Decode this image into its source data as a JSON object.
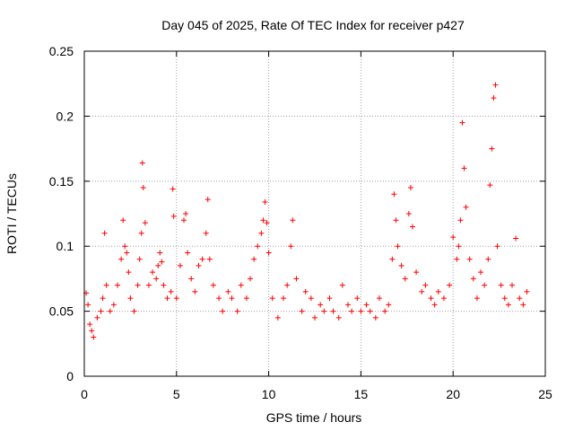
{
  "chart_data": {
    "type": "scatter",
    "title": "Day 045 of 2025, Rate Of TEC Index for receiver p427",
    "xlabel": "GPS time / hours",
    "ylabel": "ROTI / TECUs",
    "xlim": [
      0,
      25
    ],
    "ylim": [
      0,
      0.25
    ],
    "xticks": [
      0,
      5,
      10,
      15,
      20,
      25
    ],
    "xtick_labels": [
      "0",
      "5",
      "10",
      "15",
      "20",
      "25"
    ],
    "yticks": [
      0,
      0.05,
      0.1,
      0.15,
      0.2,
      0.25
    ],
    "ytick_labels": [
      "0",
      "0.05",
      "0.1",
      "0.15",
      "0.2",
      "0.25"
    ],
    "grid": true,
    "marker": "+",
    "color": "#ff0000",
    "series": [
      {
        "name": "ROTI",
        "x": [
          0.1,
          0.2,
          0.3,
          0.4,
          0.5,
          0.7,
          0.9,
          1.0,
          1.1,
          1.2,
          1.4,
          1.6,
          1.8,
          2.0,
          2.1,
          2.2,
          2.3,
          2.4,
          2.5,
          2.7,
          2.9,
          3.0,
          3.1,
          3.15,
          3.2,
          3.3,
          3.5,
          3.7,
          3.9,
          4.0,
          4.1,
          4.2,
          4.3,
          4.5,
          4.7,
          4.8,
          4.85,
          5.0,
          5.2,
          5.4,
          5.5,
          5.6,
          5.8,
          6.0,
          6.2,
          6.4,
          6.6,
          6.7,
          6.8,
          7.0,
          7.3,
          7.5,
          7.8,
          8.0,
          8.3,
          8.5,
          8.8,
          9.0,
          9.2,
          9.4,
          9.6,
          9.7,
          9.8,
          9.9,
          10.0,
          10.2,
          10.5,
          10.8,
          11.0,
          11.2,
          11.3,
          11.5,
          11.8,
          12.0,
          12.3,
          12.5,
          12.8,
          13.0,
          13.3,
          13.5,
          13.8,
          14.0,
          14.3,
          14.5,
          14.8,
          15.0,
          15.3,
          15.5,
          15.8,
          16.0,
          16.3,
          16.5,
          16.7,
          16.8,
          16.9,
          17.0,
          17.2,
          17.4,
          17.6,
          17.7,
          17.8,
          18.0,
          18.3,
          18.5,
          18.8,
          19.0,
          19.2,
          19.5,
          19.8,
          20.0,
          20.2,
          20.3,
          20.4,
          20.5,
          20.6,
          20.7,
          20.9,
          21.1,
          21.3,
          21.5,
          21.7,
          21.9,
          22.0,
          22.1,
          22.2,
          22.3,
          22.4,
          22.6,
          22.8,
          23.0,
          23.2,
          23.4,
          23.6,
          23.8,
          24.0
        ],
        "values": [
          0.064,
          0.055,
          0.04,
          0.035,
          0.03,
          0.045,
          0.05,
          0.06,
          0.11,
          0.07,
          0.05,
          0.055,
          0.07,
          0.09,
          0.12,
          0.1,
          0.095,
          0.08,
          0.06,
          0.05,
          0.07,
          0.09,
          0.11,
          0.164,
          0.145,
          0.118,
          0.07,
          0.08,
          0.075,
          0.085,
          0.095,
          0.088,
          0.07,
          0.06,
          0.065,
          0.144,
          0.123,
          0.06,
          0.085,
          0.12,
          0.125,
          0.095,
          0.075,
          0.065,
          0.085,
          0.09,
          0.11,
          0.136,
          0.09,
          0.07,
          0.06,
          0.05,
          0.065,
          0.06,
          0.05,
          0.07,
          0.06,
          0.075,
          0.09,
          0.1,
          0.11,
          0.12,
          0.134,
          0.118,
          0.095,
          0.06,
          0.045,
          0.06,
          0.07,
          0.1,
          0.12,
          0.075,
          0.05,
          0.065,
          0.06,
          0.045,
          0.055,
          0.05,
          0.06,
          0.05,
          0.045,
          0.07,
          0.055,
          0.05,
          0.06,
          0.05,
          0.055,
          0.05,
          0.045,
          0.06,
          0.05,
          0.055,
          0.09,
          0.14,
          0.12,
          0.1,
          0.085,
          0.075,
          0.125,
          0.145,
          0.115,
          0.08,
          0.065,
          0.07,
          0.06,
          0.055,
          0.065,
          0.06,
          0.07,
          0.107,
          0.09,
          0.1,
          0.12,
          0.195,
          0.16,
          0.13,
          0.09,
          0.075,
          0.06,
          0.08,
          0.07,
          0.09,
          0.147,
          0.175,
          0.214,
          0.224,
          0.1,
          0.07,
          0.06,
          0.055,
          0.07,
          0.106,
          0.06,
          0.055,
          0.065
        ]
      }
    ]
  }
}
